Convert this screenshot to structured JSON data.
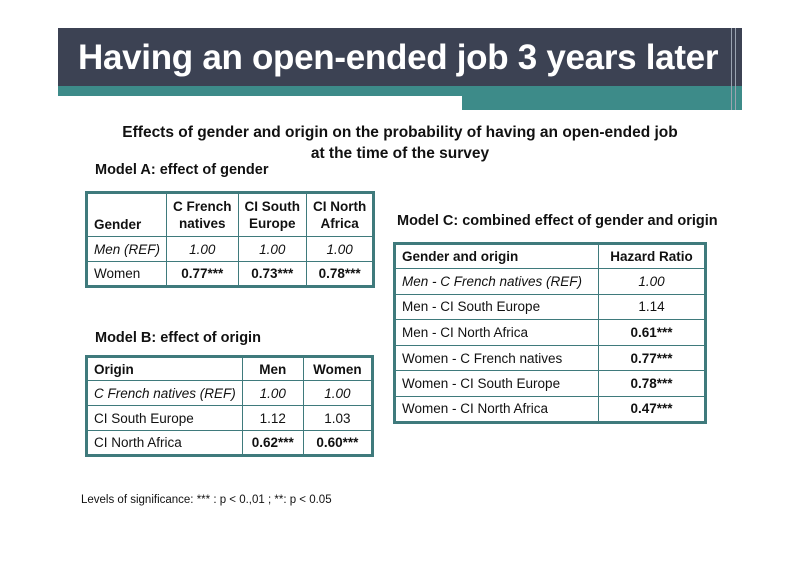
{
  "slide": {
    "title": "Having an open-ended job 3 years later",
    "subtitle_line1": "Effects of gender and origin on the probability of having an open-ended job",
    "subtitle_line2": "at the time of the survey",
    "footnote": "Levels of significance: *** : p < 0.,01 ; **: p < 0.05"
  },
  "model_a": {
    "heading": "Model A: effect of gender",
    "columns": [
      "Gender",
      "C French natives",
      "CI South Europe",
      "CI North Africa"
    ],
    "column_lines": [
      [
        "C French",
        "natives"
      ],
      [
        "CI South",
        "Europe"
      ],
      [
        "CI North",
        "Africa"
      ]
    ],
    "rows": [
      {
        "label": "Men (REF)",
        "values": [
          "1.00",
          "1.00",
          "1.00"
        ]
      },
      {
        "label": "Women",
        "values": [
          "0.77***",
          "0.73***",
          "0.78***"
        ]
      }
    ]
  },
  "model_b": {
    "heading": "Model B: effect of origin",
    "columns": [
      "Origin",
      "Men",
      "Women"
    ],
    "rows": [
      {
        "label": "C French natives (REF)",
        "values": [
          "1.00",
          "1.00"
        ]
      },
      {
        "label": "CI South Europe",
        "values": [
          "1.12",
          "1.03"
        ]
      },
      {
        "label": "CI North Africa",
        "values": [
          "0.62***",
          "0.60***"
        ]
      }
    ]
  },
  "model_c": {
    "heading": "Model C: combined effect of gender and origin",
    "columns": [
      "Gender and origin",
      "Hazard Ratio"
    ],
    "rows": [
      {
        "label": "Men - C French natives (REF)",
        "value": "1.00"
      },
      {
        "label": "Men - CI South Europe",
        "value": "1.14"
      },
      {
        "label": "Men - CI North Africa",
        "value": "0.61***"
      },
      {
        "label": "Women - C French natives",
        "value": "0.77***"
      },
      {
        "label": "Women - CI South Europe",
        "value": "0.78***"
      },
      {
        "label": "Women - CI North Africa",
        "value": "0.47***"
      }
    ]
  },
  "colors": {
    "header_bg": "#3c4253",
    "accent_teal": "#3d8b89",
    "table_border": "#3f7a7c"
  }
}
